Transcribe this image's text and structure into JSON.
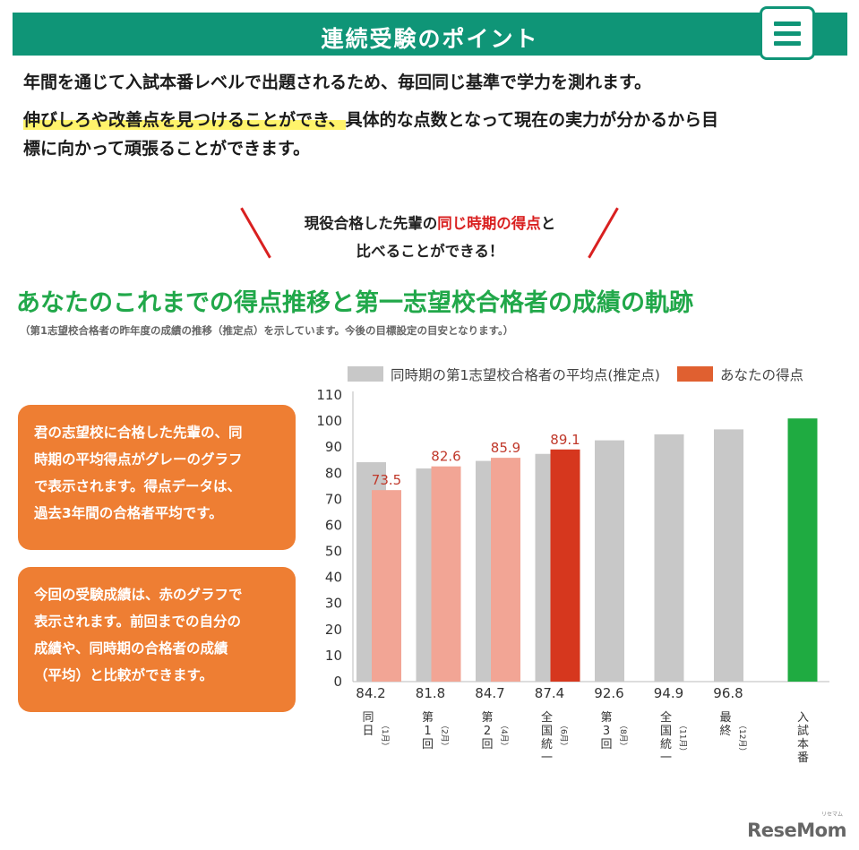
{
  "header": {
    "title": "連続受験のポイント",
    "menu_icon": "hamburger-menu-icon",
    "accent_color": "#0f9577"
  },
  "intro": {
    "line1": "年間を通じて入試本番レベルで出題されるため、毎回同じ基準で学力を測れます。",
    "line2_highlight": "伸びしろや改善点を見つけることができ、",
    "line2_rest": "具体的な点数となって現在の実力が分かるから目",
    "line3": "標に向かって頑張ることができます。"
  },
  "callout": {
    "part1": "現役合格した先輩の",
    "part_red": "同じ時期の得点",
    "part2": "と",
    "line2": "比べることができる！"
  },
  "section": {
    "title": "あなたのこれまでの得点推移と第一志望校合格者の成績の軌跡",
    "note": "（第1志望校合格者の昨年度の成績の推移（推定点）を示しています。今後の目標設定の目安となります。）"
  },
  "boxes": [
    {
      "lines": [
        "君の志望校に合格した先輩の、同",
        "時期の平均得点がグレーのグラフ",
        "で表示されます。得点データは、",
        "過去3年間の合格者平均です。"
      ]
    },
    {
      "lines": [
        "今回の受験成績は、赤のグラフで",
        "表示されます。前回までの自分の",
        "成績や、同時期の合格者の成績",
        "（平均）と比較ができます。"
      ]
    }
  ],
  "chart_data": {
    "type": "bar",
    "legend_position": "top",
    "grid": false,
    "ylim": [
      0,
      110
    ],
    "yticks": [
      "0",
      "10",
      "20",
      "30",
      "40",
      "50",
      "60",
      "70",
      "80",
      "90",
      "100",
      "110"
    ],
    "categories": [
      {
        "main": "同日",
        "sub": "（1月）"
      },
      {
        "main": "第1回",
        "sub": "（2月）"
      },
      {
        "main": "第2回",
        "sub": "（4月）"
      },
      {
        "main": "全国統一",
        "sub": "（6月）"
      },
      {
        "main": "第3回",
        "sub": "（8月）"
      },
      {
        "main": "全国統一",
        "sub": "（11月）"
      },
      {
        "main": "最終",
        "sub": "（12月）"
      },
      {
        "main": "入試本番",
        "sub": ""
      }
    ],
    "series": [
      {
        "name": "同時期の第1志望校合格者の平均点(推定点)",
        "color": "#c8c8c8",
        "values": [
          84.2,
          81.8,
          84.7,
          87.4,
          92.6,
          94.9,
          96.8,
          null
        ],
        "labels": [
          "84.2",
          "81.8",
          "84.7",
          "87.4",
          "92.6",
          "94.9",
          "96.8",
          ""
        ]
      },
      {
        "name": "あなたの得点",
        "color": "#e06030",
        "values": [
          73.5,
          82.6,
          85.9,
          89.1,
          null,
          null,
          null,
          null
        ],
        "labels": [
          "73.5",
          "82.6",
          "85.9",
          "89.1",
          "",
          "",
          "",
          ""
        ],
        "colors": [
          "#f2a595",
          "#f2a595",
          "#f2a595",
          "#d6371e"
        ]
      }
    ],
    "target_bar": {
      "value": 101,
      "color": "#1fab41"
    },
    "label_color": "#c0392b"
  },
  "logo": {
    "text": "ReseMom",
    "small": "リセマム"
  }
}
